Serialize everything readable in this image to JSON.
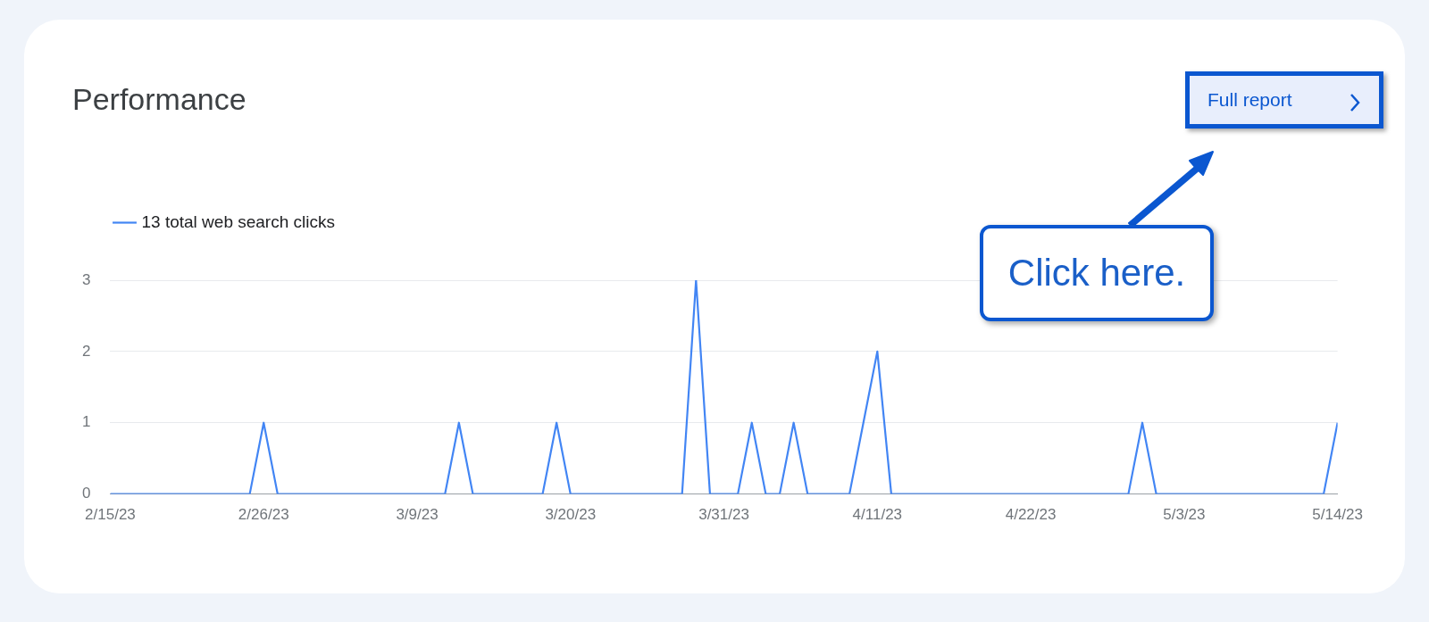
{
  "chart_data": {
    "type": "line",
    "title": "Performance",
    "x": [
      "--02-15",
      "--02-25",
      "--02-26",
      "--02-27",
      "--03-11",
      "--03-12",
      "--03-13",
      "--03-18",
      "--03-19",
      "--03-20",
      "--03-28",
      "--03-29",
      "--03-30",
      "--04-01",
      "--04-02",
      "--04-03",
      "--04-04",
      "--04-05",
      "--04-06",
      "--04-09",
      "--04-10",
      "--04-11",
      "--04-12",
      "--04-29",
      "--04-30",
      "--05-01",
      "--05-13",
      "--05-14"
    ],
    "series": [
      {
        "name": "13 total web search clicks",
        "color": "#4285f4",
        "values": [
          0,
          0,
          1,
          0,
          0,
          1,
          0,
          0,
          1,
          0,
          0,
          3,
          0,
          0,
          1,
          0,
          0,
          1,
          0,
          0,
          1,
          2,
          0,
          0,
          1,
          0,
          0,
          1
        ]
      }
    ],
    "xlim": [
      "--02-15",
      "--05-14"
    ],
    "xticks": [
      {
        "value": "--02-15",
        "label": "2/15/23"
      },
      {
        "value": "--02-26",
        "label": "2/26/23"
      },
      {
        "value": "--03-09",
        "label": "3/9/23"
      },
      {
        "value": "--03-20",
        "label": "3/20/23"
      },
      {
        "value": "--03-31",
        "label": "3/31/23"
      },
      {
        "value": "--04-11",
        "label": "4/11/23"
      },
      {
        "value": "--04-22",
        "label": "4/22/23"
      },
      {
        "value": "--05-03",
        "label": "5/3/23"
      },
      {
        "value": "--05-14",
        "label": "5/14/23"
      }
    ],
    "ylim": [
      0,
      3
    ],
    "yticks": [
      0,
      1,
      2,
      3
    ],
    "grid": "y",
    "legend": "top left",
    "marker": "none",
    "line_style": "solid",
    "annotations": [
      "Full report",
      "Click here."
    ]
  }
}
